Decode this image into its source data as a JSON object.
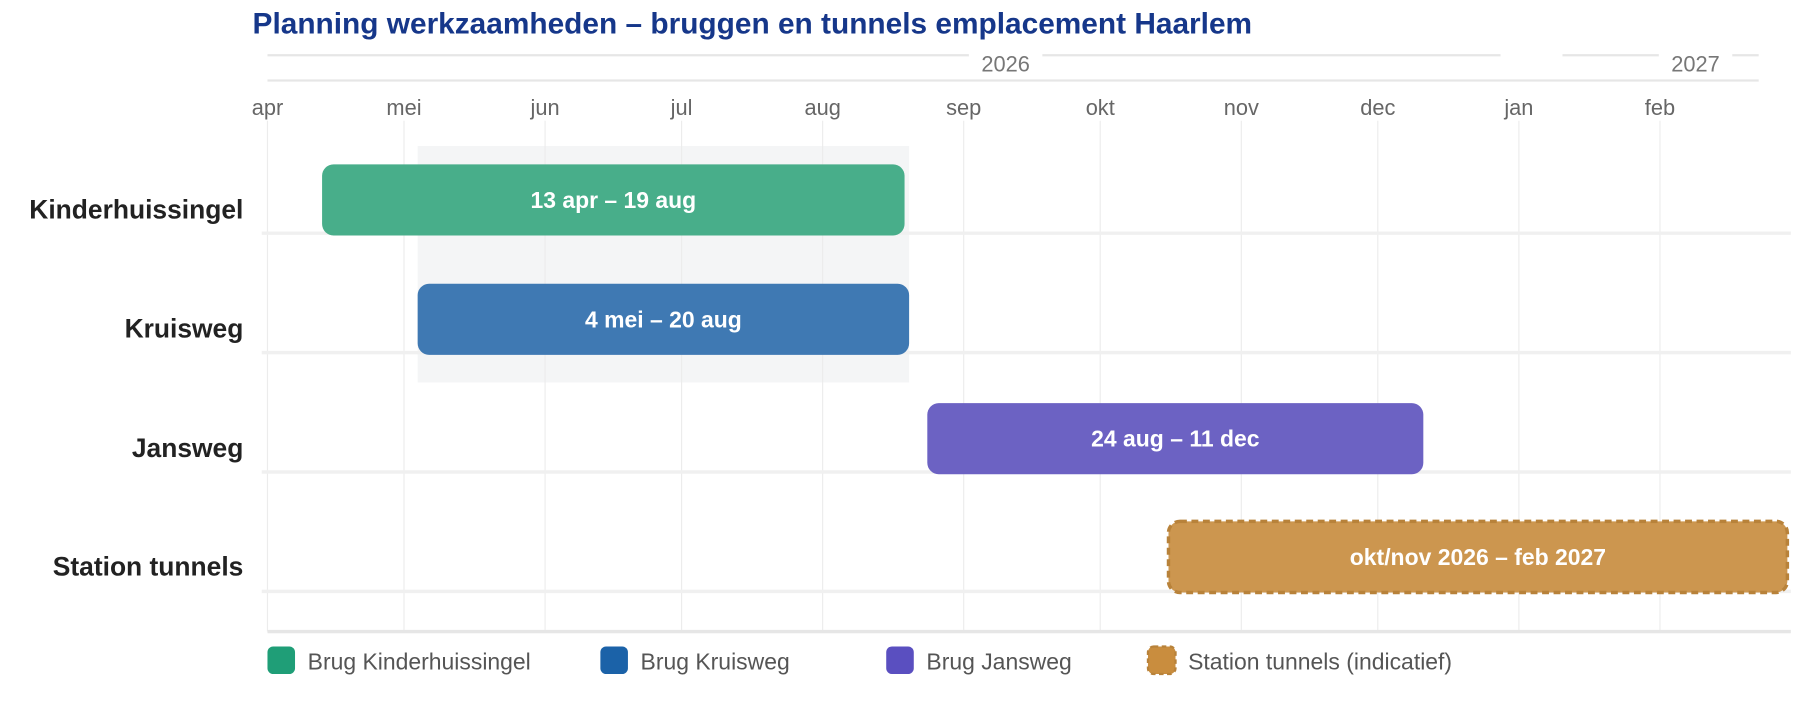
{
  "chart_data": {
    "type": "gantt",
    "title": "Planning werkzaamheden – bruggen en tunnels emplacement Haarlem",
    "x_range": [
      "2026-04-01",
      "2027-03-01"
    ],
    "years": [
      {
        "label": "2026",
        "start": "2026-04-01",
        "end": "2027-01-01"
      },
      {
        "label": "2027",
        "start": "2027-01-01",
        "end": "2027-03-01"
      }
    ],
    "months": [
      {
        "label": "apr",
        "date": "2026-04-01"
      },
      {
        "label": "mei",
        "date": "2026-05-01"
      },
      {
        "label": "jun",
        "date": "2026-06-01"
      },
      {
        "label": "jul",
        "date": "2026-07-01"
      },
      {
        "label": "aug",
        "date": "2026-08-01"
      },
      {
        "label": "sep",
        "date": "2026-09-01"
      },
      {
        "label": "okt",
        "date": "2026-10-01"
      },
      {
        "label": "nov",
        "date": "2026-11-01"
      },
      {
        "label": "dec",
        "date": "2026-12-01"
      },
      {
        "label": "jan",
        "date": "2027-01-01"
      },
      {
        "label": "feb",
        "date": "2027-02-01"
      }
    ],
    "shaded_period": {
      "start": "2026-05-04",
      "end": "2026-08-20",
      "rows": [
        0,
        1
      ]
    },
    "tasks": [
      {
        "row": "Kinderhuissingel",
        "start": "2026-04-13",
        "end": "2026-08-19",
        "label": "13 apr – 19 aug",
        "color": "#48ae8a",
        "dashed": false
      },
      {
        "row": "Kruisweg",
        "start": "2026-05-04",
        "end": "2026-08-20",
        "label": "4 mei – 20 aug",
        "color": "#3f79b3",
        "dashed": false
      },
      {
        "row": "Jansweg",
        "start": "2026-08-24",
        "end": "2026-12-11",
        "label": "24 aug – 11 dec",
        "color": "#6c62c3",
        "dashed": false
      },
      {
        "row": "Station tunnels",
        "start": "2026-10-16",
        "end": "2027-03-01",
        "label": "okt/nov 2026 – feb 2027",
        "color": "#cc964f",
        "dashed": true
      }
    ],
    "legend": {
      "placement": "bottom-left",
      "items": [
        {
          "label": "Brug Kinderhuissingel",
          "color": "#1f9e77"
        },
        {
          "label": "Brug Kruisweg",
          "color": "#1b62a8"
        },
        {
          "label": "Brug Jansweg",
          "color": "#5a4fc0"
        },
        {
          "label": "Station tunnels (indicatief)",
          "color": "#c98d3e",
          "dashed": true
        }
      ]
    },
    "grid": true
  },
  "colors": {
    "title": "#16378a"
  }
}
